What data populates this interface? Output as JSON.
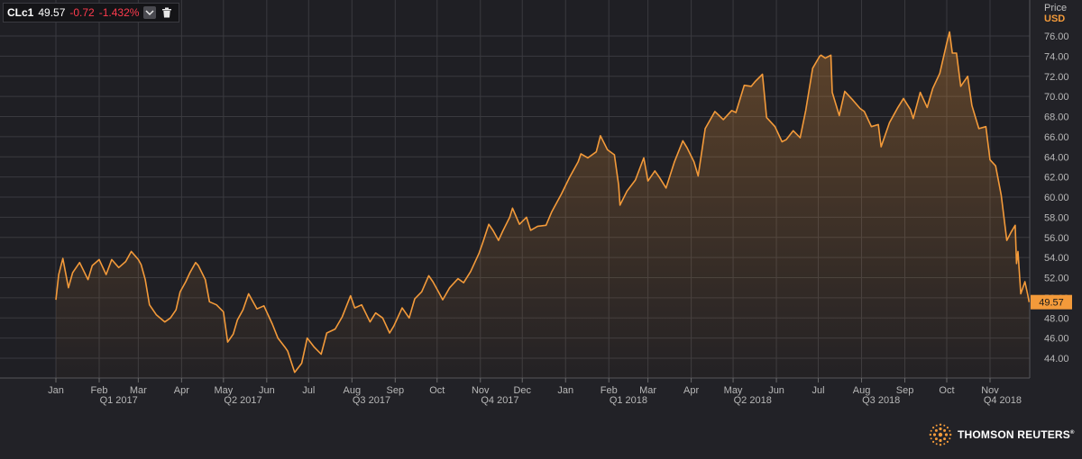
{
  "header": {
    "symbol": "CLc1",
    "last_price": "49.57",
    "change": "-0.72",
    "change_pct": "-1.432%",
    "dropdown_icon": "chevron-down-icon",
    "delete_icon": "trash-icon"
  },
  "axis": {
    "title": "Price",
    "currency": "USD"
  },
  "logo": {
    "text": "THOMSON REUTERS",
    "mark": "®"
  },
  "colors": {
    "background": "#222227",
    "line": "#f39a3a",
    "grid": "#3a3a3f",
    "negative": "#ff3b4e",
    "price_tag": "#f39a3a"
  },
  "chart_data": {
    "type": "area",
    "series": [
      {
        "name": "CLc1",
        "points": [
          [
            "2017-01-01",
            49.8
          ],
          [
            "2017-01-03",
            52.3
          ],
          [
            "2017-01-06",
            53.9
          ],
          [
            "2017-01-10",
            51.0
          ],
          [
            "2017-01-13",
            52.5
          ],
          [
            "2017-01-18",
            53.5
          ],
          [
            "2017-01-24",
            51.8
          ],
          [
            "2017-01-27",
            53.2
          ],
          [
            "2017-02-01",
            53.8
          ],
          [
            "2017-02-06",
            52.3
          ],
          [
            "2017-02-10",
            53.8
          ],
          [
            "2017-02-15",
            53.0
          ],
          [
            "2017-02-20",
            53.6
          ],
          [
            "2017-02-24",
            54.6
          ],
          [
            "2017-03-01",
            53.8
          ],
          [
            "2017-03-03",
            53.3
          ],
          [
            "2017-03-06",
            51.8
          ],
          [
            "2017-03-09",
            49.3
          ],
          [
            "2017-03-14",
            48.3
          ],
          [
            "2017-03-20",
            47.6
          ],
          [
            "2017-03-24",
            48.0
          ],
          [
            "2017-03-28",
            48.8
          ],
          [
            "2017-03-31",
            50.6
          ],
          [
            "2017-04-04",
            51.6
          ],
          [
            "2017-04-07",
            52.5
          ],
          [
            "2017-04-11",
            53.5
          ],
          [
            "2017-04-13",
            53.2
          ],
          [
            "2017-04-18",
            51.8
          ],
          [
            "2017-04-21",
            49.6
          ],
          [
            "2017-04-26",
            49.3
          ],
          [
            "2017-05-01",
            48.6
          ],
          [
            "2017-05-04",
            45.6
          ],
          [
            "2017-05-08",
            46.4
          ],
          [
            "2017-05-11",
            47.8
          ],
          [
            "2017-05-15",
            48.8
          ],
          [
            "2017-05-19",
            50.4
          ],
          [
            "2017-05-25",
            48.9
          ],
          [
            "2017-05-30",
            49.2
          ],
          [
            "2017-06-05",
            47.4
          ],
          [
            "2017-06-09",
            46.0
          ],
          [
            "2017-06-14",
            45.1
          ],
          [
            "2017-06-16",
            44.7
          ],
          [
            "2017-06-21",
            42.6
          ],
          [
            "2017-06-26",
            43.5
          ],
          [
            "2017-06-30",
            46.0
          ],
          [
            "2017-07-05",
            45.1
          ],
          [
            "2017-07-10",
            44.4
          ],
          [
            "2017-07-14",
            46.5
          ],
          [
            "2017-07-20",
            46.9
          ],
          [
            "2017-07-25",
            48.1
          ],
          [
            "2017-07-31",
            50.2
          ],
          [
            "2017-08-03",
            49.0
          ],
          [
            "2017-08-08",
            49.3
          ],
          [
            "2017-08-14",
            47.6
          ],
          [
            "2017-08-18",
            48.5
          ],
          [
            "2017-08-23",
            48.0
          ],
          [
            "2017-08-28",
            46.5
          ],
          [
            "2017-08-31",
            47.2
          ],
          [
            "2017-09-06",
            49.0
          ],
          [
            "2017-09-11",
            48.0
          ],
          [
            "2017-09-15",
            49.9
          ],
          [
            "2017-09-20",
            50.6
          ],
          [
            "2017-09-25",
            52.2
          ],
          [
            "2017-09-28",
            51.6
          ],
          [
            "2017-10-02",
            50.6
          ],
          [
            "2017-10-05",
            49.8
          ],
          [
            "2017-10-10",
            51.0
          ],
          [
            "2017-10-16",
            51.9
          ],
          [
            "2017-10-20",
            51.5
          ],
          [
            "2017-10-25",
            52.6
          ],
          [
            "2017-10-31",
            54.4
          ],
          [
            "2017-11-03",
            55.6
          ],
          [
            "2017-11-07",
            57.3
          ],
          [
            "2017-11-10",
            56.7
          ],
          [
            "2017-11-14",
            55.7
          ],
          [
            "2017-11-17",
            56.6
          ],
          [
            "2017-11-22",
            58.0
          ],
          [
            "2017-11-24",
            58.9
          ],
          [
            "2017-11-29",
            57.3
          ],
          [
            "2017-12-04",
            58.0
          ],
          [
            "2017-12-07",
            56.7
          ],
          [
            "2017-12-12",
            57.1
          ],
          [
            "2017-12-18",
            57.2
          ],
          [
            "2017-12-22",
            58.5
          ],
          [
            "2017-12-29",
            60.3
          ],
          [
            "2018-01-04",
            62.0
          ],
          [
            "2018-01-10",
            63.5
          ],
          [
            "2018-01-12",
            64.3
          ],
          [
            "2018-01-17",
            63.9
          ],
          [
            "2018-01-23",
            64.5
          ],
          [
            "2018-01-26",
            66.1
          ],
          [
            "2018-01-31",
            64.7
          ],
          [
            "2018-02-05",
            64.2
          ],
          [
            "2018-02-08",
            61.2
          ],
          [
            "2018-02-09",
            59.2
          ],
          [
            "2018-02-14",
            60.6
          ],
          [
            "2018-02-20",
            61.7
          ],
          [
            "2018-02-26",
            63.9
          ],
          [
            "2018-03-01",
            61.6
          ],
          [
            "2018-03-06",
            62.6
          ],
          [
            "2018-03-09",
            62.0
          ],
          [
            "2018-03-14",
            60.9
          ],
          [
            "2018-03-20",
            63.5
          ],
          [
            "2018-03-26",
            65.6
          ],
          [
            "2018-03-29",
            64.9
          ],
          [
            "2018-04-03",
            63.5
          ],
          [
            "2018-04-06",
            62.1
          ],
          [
            "2018-04-11",
            66.8
          ],
          [
            "2018-04-18",
            68.5
          ],
          [
            "2018-04-24",
            67.7
          ],
          [
            "2018-04-30",
            68.6
          ],
          [
            "2018-05-03",
            68.4
          ],
          [
            "2018-05-09",
            71.1
          ],
          [
            "2018-05-14",
            71.0
          ],
          [
            "2018-05-17",
            71.5
          ],
          [
            "2018-05-22",
            72.2
          ],
          [
            "2018-05-25",
            67.9
          ],
          [
            "2018-05-31",
            67.0
          ],
          [
            "2018-06-05",
            65.5
          ],
          [
            "2018-06-08",
            65.7
          ],
          [
            "2018-06-13",
            66.6
          ],
          [
            "2018-06-18",
            65.9
          ],
          [
            "2018-06-22",
            68.6
          ],
          [
            "2018-06-27",
            72.8
          ],
          [
            "2018-07-02",
            74.0
          ],
          [
            "2018-07-03",
            74.1
          ],
          [
            "2018-07-06",
            73.8
          ],
          [
            "2018-07-10",
            74.1
          ],
          [
            "2018-07-11",
            70.4
          ],
          [
            "2018-07-16",
            68.1
          ],
          [
            "2018-07-20",
            70.5
          ],
          [
            "2018-07-26",
            69.6
          ],
          [
            "2018-07-31",
            68.8
          ],
          [
            "2018-08-03",
            68.5
          ],
          [
            "2018-08-08",
            67.0
          ],
          [
            "2018-08-13",
            67.2
          ],
          [
            "2018-08-15",
            65.0
          ],
          [
            "2018-08-21",
            67.4
          ],
          [
            "2018-08-27",
            68.9
          ],
          [
            "2018-08-31",
            69.8
          ],
          [
            "2018-09-05",
            68.7
          ],
          [
            "2018-09-07",
            67.8
          ],
          [
            "2018-09-12",
            70.4
          ],
          [
            "2018-09-17",
            68.9
          ],
          [
            "2018-09-21",
            70.8
          ],
          [
            "2018-09-26",
            72.3
          ],
          [
            "2018-10-01",
            75.3
          ],
          [
            "2018-10-03",
            76.4
          ],
          [
            "2018-10-05",
            74.3
          ],
          [
            "2018-10-08",
            74.3
          ],
          [
            "2018-10-11",
            71.0
          ],
          [
            "2018-10-16",
            72.0
          ],
          [
            "2018-10-19",
            69.1
          ],
          [
            "2018-10-24",
            66.8
          ],
          [
            "2018-10-29",
            67.0
          ],
          [
            "2018-11-01",
            63.7
          ],
          [
            "2018-11-05",
            63.1
          ],
          [
            "2018-11-09",
            60.2
          ],
          [
            "2018-11-13",
            55.7
          ],
          [
            "2018-11-16",
            56.5
          ],
          [
            "2018-11-19",
            57.2
          ],
          [
            "2018-11-20",
            53.4
          ],
          [
            "2018-11-21",
            54.6
          ],
          [
            "2018-11-23",
            50.4
          ],
          [
            "2018-11-26",
            51.6
          ],
          [
            "2018-11-28",
            50.3
          ],
          [
            "2018-11-29",
            49.57
          ]
        ]
      }
    ],
    "last_value": 49.57,
    "ylim": [
      42,
      77
    ],
    "y_ticks": [
      "44.00",
      "46.00",
      "48.00",
      "50.00",
      "52.00",
      "54.00",
      "56.00",
      "58.00",
      "60.00",
      "62.00",
      "64.00",
      "66.00",
      "68.00",
      "70.00",
      "72.00",
      "74.00",
      "76.00"
    ],
    "x_ticks": [
      {
        "date": "2017-01-01",
        "label": "Jan"
      },
      {
        "date": "2017-02-01",
        "label": "Feb"
      },
      {
        "date": "2017-03-01",
        "label": "Mar"
      },
      {
        "date": "2017-04-01",
        "label": "Apr"
      },
      {
        "date": "2017-05-01",
        "label": "May"
      },
      {
        "date": "2017-06-01",
        "label": "Jun"
      },
      {
        "date": "2017-07-01",
        "label": "Jul"
      },
      {
        "date": "2017-08-01",
        "label": "Aug"
      },
      {
        "date": "2017-09-01",
        "label": "Sep"
      },
      {
        "date": "2017-10-01",
        "label": "Oct"
      },
      {
        "date": "2017-11-01",
        "label": "Nov"
      },
      {
        "date": "2017-12-01",
        "label": "Dec"
      },
      {
        "date": "2018-01-01",
        "label": "Jan"
      },
      {
        "date": "2018-02-01",
        "label": "Feb"
      },
      {
        "date": "2018-03-01",
        "label": "Mar"
      },
      {
        "date": "2018-04-01",
        "label": "Apr"
      },
      {
        "date": "2018-05-01",
        "label": "May"
      },
      {
        "date": "2018-06-01",
        "label": "Jun"
      },
      {
        "date": "2018-07-01",
        "label": "Jul"
      },
      {
        "date": "2018-08-01",
        "label": "Aug"
      },
      {
        "date": "2018-09-01",
        "label": "Sep"
      },
      {
        "date": "2018-10-01",
        "label": "Oct"
      },
      {
        "date": "2018-11-01",
        "label": "Nov"
      }
    ],
    "quarter_labels": [
      {
        "date": "2017-02-15",
        "label": "Q1 2017"
      },
      {
        "date": "2017-05-15",
        "label": "Q2 2017"
      },
      {
        "date": "2017-08-15",
        "label": "Q3 2017"
      },
      {
        "date": "2017-11-15",
        "label": "Q4 2017"
      },
      {
        "date": "2018-02-15",
        "label": "Q1 2018"
      },
      {
        "date": "2018-05-15",
        "label": "Q2 2018"
      },
      {
        "date": "2018-08-15",
        "label": "Q3 2018"
      },
      {
        "date": "2018-11-10",
        "label": "Q4 2018"
      }
    ],
    "grid": true,
    "legend": "none"
  }
}
